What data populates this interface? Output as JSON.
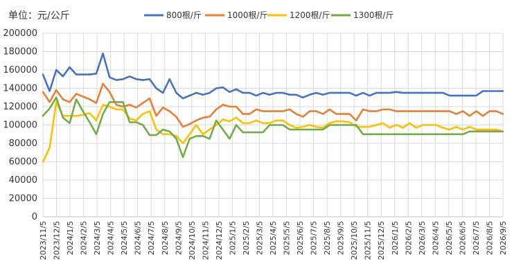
{
  "chart_data": {
    "type": "line",
    "unit_label": "单位：元/公斤",
    "ylim": [
      0,
      200000
    ],
    "yticks": [
      0,
      20000,
      40000,
      60000,
      80000,
      100000,
      120000,
      140000,
      160000,
      180000,
      200000
    ],
    "ytick_labels": [
      "0",
      "20000",
      "40000",
      "60000",
      "80000",
      "100000",
      "120000",
      "140000",
      "160000",
      "180000",
      "200000"
    ],
    "grid": true,
    "legend_position": "top",
    "xtick_labels": [
      "2023/11/5",
      "2023/12/5",
      "2024/1/5",
      "2024/2/5",
      "2024/3/5",
      "2024/4/5",
      "2024/5/5",
      "2024/6/5",
      "2024/7/5",
      "2024/8/5",
      "2024/9/5",
      "2024/10/5",
      "2024/11/5",
      "2024/12/5",
      "2025/1/5",
      "2025/2/5",
      "2025/3/5",
      "2025/4/5",
      "2025/5/5",
      "2025/6/5",
      "2025/7/5",
      "2025/8/5",
      "2025/9/5",
      "2025/10/5",
      "2025/11/5",
      "2025/12/5",
      "2026/1/5",
      "2026/2/5",
      "2026/3/5",
      "2026/4/5",
      "2026/5/5",
      "2026/6/5",
      "2026/7/5",
      "2026/8/5",
      "2026/9/5"
    ],
    "series": [
      {
        "name": "800根/斤",
        "color": "#4472c4",
        "values": [
          155000,
          137000,
          160000,
          153000,
          163000,
          155000,
          155000,
          155000,
          156000,
          178000,
          152000,
          149000,
          150000,
          153000,
          150000,
          149000,
          150000,
          140000,
          135000,
          150000,
          135000,
          129000,
          132000,
          135000,
          133000,
          135000,
          140000,
          141000,
          136000,
          139000,
          135000,
          135000,
          132000,
          135000,
          133000,
          135000,
          135000,
          133000,
          133000,
          130000,
          133000,
          135000,
          133000,
          135000,
          135000,
          135000,
          135000,
          132000,
          135000,
          132000,
          135000,
          135000,
          135000,
          136000,
          135000,
          135000,
          135000,
          135000,
          135000,
          135000,
          135000,
          132000,
          132000,
          132000,
          132000,
          132000,
          137000,
          137000,
          137000,
          137000
        ]
      },
      {
        "name": "1000根/斤",
        "color": "#ed7d31",
        "values": [
          136000,
          125000,
          138000,
          128000,
          125000,
          134000,
          131000,
          128000,
          124000,
          145000,
          136000,
          122000,
          120000,
          122000,
          119000,
          124000,
          129000,
          110000,
          119000,
          115000,
          109000,
          98000,
          101000,
          105000,
          108000,
          109000,
          117000,
          122000,
          120000,
          120000,
          112000,
          112000,
          117000,
          115000,
          115000,
          115000,
          115000,
          117000,
          112000,
          109000,
          115000,
          115000,
          112000,
          117000,
          112000,
          112000,
          112000,
          105000,
          117000,
          115000,
          115000,
          117000,
          117000,
          115000,
          115000,
          115000,
          115000,
          115000,
          115000,
          115000,
          115000,
          115000,
          112000,
          115000,
          110000,
          115000,
          110000,
          115000,
          115000,
          112000
        ]
      },
      {
        "name": "1200根/斤",
        "color": "#ffc000",
        "values": [
          60000,
          75000,
          125000,
          110000,
          110000,
          110000,
          111000,
          113000,
          105000,
          122000,
          120000,
          117000,
          117000,
          107000,
          105000,
          112000,
          115000,
          95000,
          90000,
          90000,
          88000,
          80000,
          90000,
          100000,
          90000,
          95000,
          100000,
          106000,
          104000,
          108000,
          102000,
          102000,
          105000,
          102000,
          102000,
          105000,
          105000,
          100000,
          97000,
          98000,
          100000,
          98000,
          97000,
          102000,
          104000,
          104000,
          103000,
          98000,
          98000,
          98000,
          100000,
          102000,
          97000,
          100000,
          97000,
          102000,
          97000,
          100000,
          100000,
          100000,
          97000,
          95000,
          98000,
          95000,
          98000,
          95000,
          95000,
          95000,
          95000,
          93000
        ]
      },
      {
        "name": "1300根/斤",
        "color": "#70ad47",
        "values": [
          110000,
          118000,
          130000,
          108000,
          102000,
          128000,
          115000,
          103000,
          90000,
          112000,
          125000,
          125000,
          125000,
          103000,
          103000,
          100000,
          89000,
          89000,
          95000,
          93000,
          85000,
          65000,
          85000,
          88000,
          88000,
          85000,
          105000,
          95000,
          85000,
          100000,
          92000,
          92000,
          92000,
          92000,
          100000,
          100000,
          100000,
          95000,
          95000,
          95000,
          95000,
          95000,
          95000,
          100000,
          100000,
          100000,
          100000,
          100000,
          90000,
          90000,
          90000,
          90000,
          90000,
          90000,
          90000,
          90000,
          90000,
          90000,
          90000,
          90000,
          90000,
          90000,
          90000,
          90000,
          93000,
          93000,
          93000,
          93000,
          93000,
          93000
        ]
      }
    ]
  }
}
